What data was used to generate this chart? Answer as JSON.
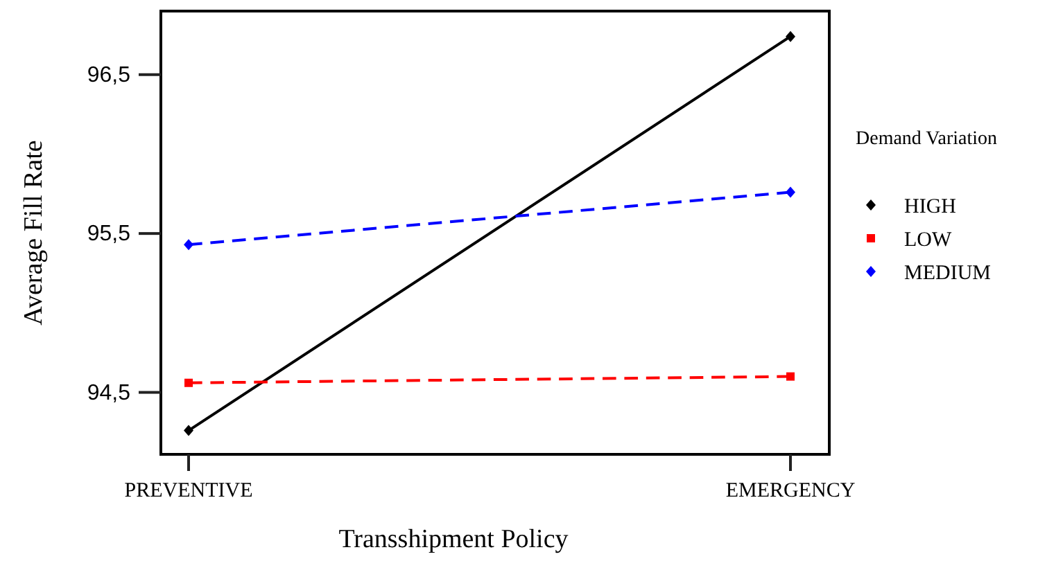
{
  "chart_data": {
    "type": "line",
    "xlabel": "Transshipment Policy",
    "ylabel": "Average Fill Rate",
    "legend_title": "Demand Variation",
    "legend": "right",
    "categories": [
      "PREVENTIVE",
      "EMERGENCY"
    ],
    "ylim": [
      94.11,
      96.9
    ],
    "yticks": [
      {
        "value": 94.5,
        "label": "94,5"
      },
      {
        "value": 95.5,
        "label": "95,5"
      },
      {
        "value": 96.5,
        "label": "96,5"
      }
    ],
    "grid": false,
    "series": [
      {
        "name": "HIGH",
        "color": "#000000",
        "values": [
          94.26,
          96.74
        ],
        "line_style": "solid",
        "marker": "diamond"
      },
      {
        "name": "LOW",
        "color": "#ff0000",
        "values": [
          94.56,
          94.6
        ],
        "line_style": "dashed",
        "marker": "square"
      },
      {
        "name": "MEDIUM",
        "color": "#0000ff",
        "values": [
          95.43,
          95.76
        ],
        "line_style": "dashed",
        "marker": "diamond"
      }
    ]
  }
}
